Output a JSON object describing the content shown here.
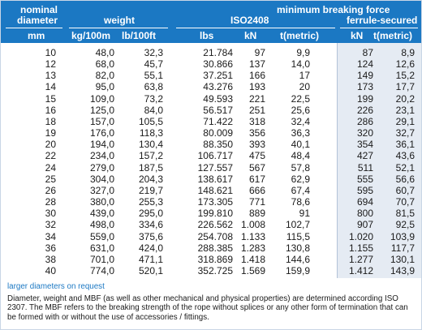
{
  "header": {
    "nominal_line1": "nominal",
    "nominal_line2": "diameter",
    "nominal_unit": "mm",
    "weight_title": "weight",
    "weight_unit_metric": "kg/100m",
    "weight_unit_imperial": "lb/100ft",
    "mbf_title": "minimum breaking force",
    "iso_title": "ISO2408",
    "ferrule_title": "ferrule-secured",
    "col_lbs": "lbs",
    "col_kn": "kN",
    "col_tmetric": "t(metric)",
    "col_ferrule_kn": "kN",
    "col_ferrule_t": "t(metric)"
  },
  "table": {
    "rows": [
      [
        "10",
        "48,0",
        "32,3",
        "21.784",
        "97",
        "9,9",
        "87",
        "8,9"
      ],
      [
        "12",
        "68,0",
        "45,7",
        "30.866",
        "137",
        "14,0",
        "124",
        "12,6"
      ],
      [
        "13",
        "82,0",
        "55,1",
        "37.251",
        "166",
        "17",
        "149",
        "15,2"
      ],
      [
        "14",
        "95,0",
        "63,8",
        "43.276",
        "193",
        "20",
        "173",
        "17,7"
      ],
      [
        "15",
        "109,0",
        "73,2",
        "49.593",
        "221",
        "22,5",
        "199",
        "20,2"
      ],
      [
        "16",
        "125,0",
        "84,0",
        "56.517",
        "251",
        "25,6",
        "226",
        "23,1"
      ],
      [
        "18",
        "157,0",
        "105,5",
        "71.422",
        "318",
        "32,4",
        "286",
        "29,1"
      ],
      [
        "19",
        "176,0",
        "118,3",
        "80.009",
        "356",
        "36,3",
        "320",
        "32,7"
      ],
      [
        "20",
        "194,0",
        "130,4",
        "88.350",
        "393",
        "40,1",
        "354",
        "36,1"
      ],
      [
        "22",
        "234,0",
        "157,2",
        "106.717",
        "475",
        "48,4",
        "427",
        "43,6"
      ],
      [
        "24",
        "279,0",
        "187,5",
        "127.557",
        "567",
        "57,8",
        "511",
        "52,1"
      ],
      [
        "25",
        "304,0",
        "204,3",
        "138.617",
        "617",
        "62,9",
        "555",
        "56,6"
      ],
      [
        "26",
        "327,0",
        "219,7",
        "148.621",
        "666",
        "67,4",
        "595",
        "60,7"
      ],
      [
        "28",
        "380,0",
        "255,3",
        "173.305",
        "771",
        "78,6",
        "694",
        "70,7"
      ],
      [
        "30",
        "439,0",
        "295,0",
        "199.810",
        "889",
        "91",
        "800",
        "81,5"
      ],
      [
        "32",
        "498,0",
        "334,6",
        "226.562",
        "1.008",
        "102,7",
        "907",
        "92,5"
      ],
      [
        "34",
        "559,0",
        "375,6",
        "254.708",
        "1.133",
        "115,5",
        "1.020",
        "103,9"
      ],
      [
        "36",
        "631,0",
        "424,0",
        "288.385",
        "1.283",
        "130,8",
        "1.155",
        "117,7"
      ],
      [
        "38",
        "701,0",
        "471,1",
        "318.869",
        "1.418",
        "144,6",
        "1.277",
        "130,1"
      ],
      [
        "40",
        "774,0",
        "520,1",
        "352.725",
        "1.569",
        "159,9",
        "1.412",
        "143,9"
      ]
    ]
  },
  "footer": {
    "link_text": "larger diameters on request",
    "note_text": "Diameter, weight and MBF (as well as other mechanical and physical properties) are determined according ISO 2307. The MBF refers to the breaking strength of the rope without splices or any other form of termination that can be formed with or without the use of accessories / fittings."
  },
  "colors": {
    "header_bg": "#1b78c3",
    "ferrule_shade": "#e5ebf3",
    "link": "#1b78c3"
  }
}
